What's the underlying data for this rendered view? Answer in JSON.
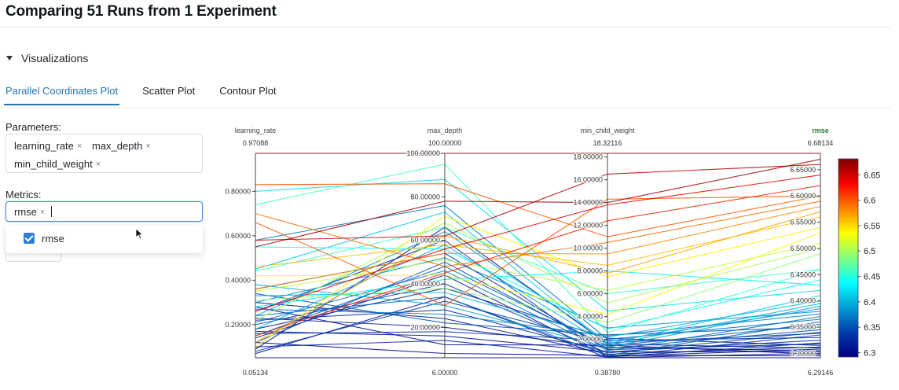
{
  "page": {
    "title": "Comparing 51 Runs from 1 Experiment"
  },
  "section": {
    "label": "Visualizations",
    "icon": "caret-down-icon"
  },
  "tabs": [
    {
      "label": "Parallel Coordinates Plot",
      "active": true
    },
    {
      "label": "Scatter Plot",
      "active": false
    },
    {
      "label": "Contour Plot",
      "active": false
    }
  ],
  "parameters": {
    "label": "Parameters:",
    "selected": [
      "learning_rate",
      "max_depth",
      "min_child_weight"
    ]
  },
  "metrics": {
    "label": "Metrics:",
    "selected": [
      "rmse"
    ],
    "dropdown_options": [
      {
        "label": "rmse",
        "checked": true
      }
    ]
  },
  "remove_glyph": "×",
  "colors": {
    "accent": "#2374bb",
    "checkbox": "#2f7ce0",
    "highlight_axis": "#2e7d32"
  },
  "chart_data": {
    "type": "parallel_coordinates",
    "axes": [
      {
        "name": "learning_rate",
        "min": 0.05134,
        "max": 0.97088,
        "top_label": "0.97088",
        "bottom_label": "0.05134",
        "ticks": [
          0.2,
          0.4,
          0.6,
          0.8
        ],
        "tick_labels": [
          "0.20000",
          "0.40000",
          "0.60000",
          "0.80000"
        ]
      },
      {
        "name": "max_depth",
        "min": 6.0,
        "max": 100.0,
        "top_label": "100.00000",
        "bottom_label": "6.00000",
        "ticks": [
          20,
          40,
          60,
          80,
          100
        ],
        "tick_labels": [
          "20.00000",
          "40.00000",
          "60.00000",
          "80.00000",
          "100.00000"
        ]
      },
      {
        "name": "min_child_weight",
        "min": 0.3878,
        "max": 18.32116,
        "top_label": "18.32116",
        "bottom_label": "0.38780",
        "ticks": [
          2,
          4,
          6,
          8,
          10,
          12,
          14,
          16,
          18
        ],
        "tick_labels": [
          "2.00000",
          "4.00000",
          "6.00000",
          "8.00000",
          "10.00000",
          "12.00000",
          "14.00000",
          "16.00000",
          "18.00000"
        ]
      },
      {
        "name": "rmse",
        "min": 6.29146,
        "max": 6.68134,
        "top_label": "6.68134",
        "bottom_label": "6.29146",
        "highlight": true,
        "ticks": [
          6.3,
          6.35,
          6.4,
          6.45,
          6.5,
          6.55,
          6.6,
          6.65
        ],
        "tick_labels": [
          "6.30000",
          "6.35000",
          "6.40000",
          "6.45000",
          "6.50000",
          "6.55000",
          "6.60000",
          "6.65000"
        ]
      }
    ],
    "colorbar": {
      "min": 6.29146,
      "max": 6.68134,
      "ticks": [
        6.3,
        6.35,
        6.4,
        6.45,
        6.5,
        6.55,
        6.6,
        6.65
      ],
      "tick_labels": [
        "6.3",
        "6.35",
        "6.4",
        "6.45",
        "6.5",
        "6.55",
        "6.6",
        "6.65"
      ],
      "colorscale": "Jet"
    },
    "runs": [
      [
        0.97088,
        100.0,
        18.32116,
        6.68134
      ],
      [
        0.55,
        78.0,
        14.0,
        6.67
      ],
      [
        0.58,
        62.0,
        16.5,
        6.66
      ],
      [
        0.26,
        56.0,
        13.8,
        6.64
      ],
      [
        0.15,
        45.0,
        12.4,
        6.62
      ],
      [
        0.83,
        86.0,
        11.0,
        6.6
      ],
      [
        0.7,
        48.0,
        10.5,
        6.59
      ],
      [
        0.36,
        54.0,
        9.5,
        6.58
      ],
      [
        0.66,
        30.0,
        14.3,
        6.6
      ],
      [
        0.12,
        62.0,
        7.8,
        6.57
      ],
      [
        0.46,
        58.0,
        8.5,
        6.56
      ],
      [
        0.1,
        71.0,
        7.5,
        6.54
      ],
      [
        0.42,
        44.0,
        4.2,
        6.53
      ],
      [
        0.35,
        51.0,
        6.3,
        6.51
      ],
      [
        0.22,
        68.0,
        5.2,
        6.5
      ],
      [
        0.31,
        38.0,
        3.5,
        6.49
      ],
      [
        0.74,
        95.0,
        2.6,
        6.46
      ],
      [
        0.44,
        66.0,
        6.0,
        6.46
      ],
      [
        0.55,
        56.0,
        2.9,
        6.44
      ],
      [
        0.8,
        88.0,
        4.5,
        6.42
      ],
      [
        0.28,
        42.0,
        8.0,
        6.43
      ],
      [
        0.45,
        73.0,
        1.6,
        6.41
      ],
      [
        0.33,
        36.0,
        2.2,
        6.4
      ],
      [
        0.18,
        58.0,
        1.5,
        6.395
      ],
      [
        0.38,
        30.0,
        1.3,
        6.39
      ],
      [
        0.24,
        64.0,
        1.8,
        6.385
      ],
      [
        0.3,
        52.0,
        3.0,
        6.38
      ],
      [
        0.27,
        26.0,
        2.3,
        6.375
      ],
      [
        0.21,
        46.0,
        1.0,
        6.37
      ],
      [
        0.58,
        76.0,
        2.0,
        6.365
      ],
      [
        0.24,
        34.0,
        0.6,
        6.36
      ],
      [
        0.15,
        48.0,
        1.4,
        6.355
      ],
      [
        0.34,
        22.0,
        2.4,
        6.35
      ],
      [
        0.12,
        50.0,
        1.2,
        6.345
      ],
      [
        0.2,
        40.0,
        0.8,
        6.34
      ],
      [
        0.08,
        32.0,
        1.7,
        6.338
      ],
      [
        0.26,
        60.0,
        0.5,
        6.335
      ],
      [
        0.16,
        18.0,
        1.9,
        6.33
      ],
      [
        0.22,
        28.0,
        0.9,
        6.325
      ],
      [
        0.1,
        14.0,
        0.45,
        6.32
      ],
      [
        0.36,
        54.0,
        1.1,
        6.318
      ],
      [
        0.18,
        38.0,
        2.1,
        6.315
      ],
      [
        0.3,
        24.0,
        0.7,
        6.312
      ],
      [
        0.09,
        66.0,
        1.6,
        6.31
      ],
      [
        0.14,
        44.0,
        0.5,
        6.308
      ],
      [
        0.23,
        20.0,
        1.3,
        6.305
      ],
      [
        0.17,
        16.0,
        0.9,
        6.303
      ],
      [
        0.07,
        34.0,
        0.4,
        6.3
      ],
      [
        0.28,
        12.0,
        1.5,
        6.298
      ],
      [
        0.12,
        8.0,
        0.6,
        6.295
      ],
      [
        0.05134,
        6.0,
        0.3878,
        6.29146
      ]
    ]
  }
}
